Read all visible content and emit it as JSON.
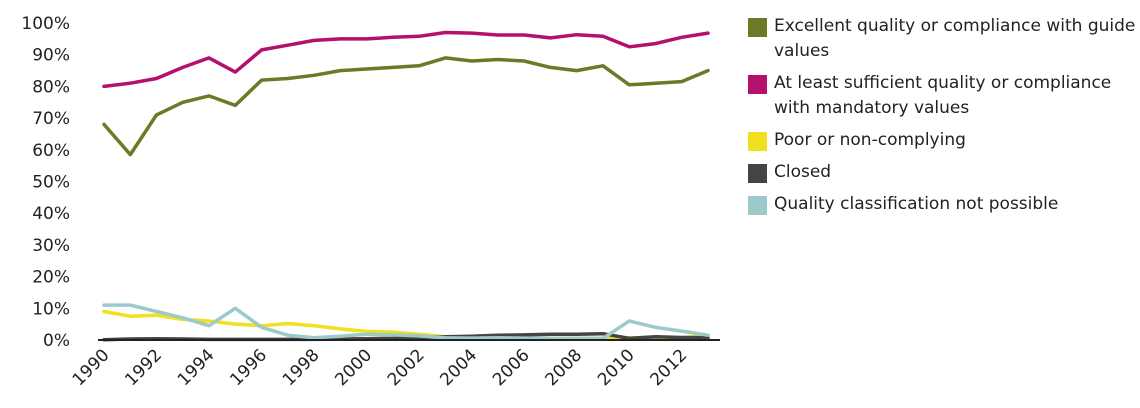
{
  "chart_data": {
    "type": "line",
    "title": "",
    "xlabel": "",
    "ylabel": "",
    "ylim": [
      0,
      100
    ],
    "yticks": [
      0,
      10,
      20,
      30,
      40,
      50,
      60,
      70,
      80,
      90,
      100
    ],
    "ytick_labels": [
      "0%",
      "10%",
      "20%",
      "30%",
      "40%",
      "50%",
      "60%",
      "70%",
      "80%",
      "90%",
      "100%"
    ],
    "x": [
      1990,
      1991,
      1992,
      1993,
      1994,
      1995,
      1996,
      1997,
      1998,
      1999,
      2000,
      2001,
      2002,
      2003,
      2004,
      2005,
      2006,
      2007,
      2008,
      2009,
      2010,
      2011,
      2012,
      2013
    ],
    "xticks": [
      1990,
      1992,
      1994,
      1996,
      1998,
      2000,
      2002,
      2004,
      2006,
      2008,
      2010,
      2012
    ],
    "xtick_labels": [
      "1990",
      "1992",
      "1994",
      "1996",
      "1998",
      "2000",
      "2002",
      "2004",
      "2006",
      "2008",
      "2010",
      "2012"
    ],
    "grid": false,
    "legend_position": "right",
    "series": [
      {
        "name": "Excellent quality or compliance with guide values",
        "color": "#6b7a27",
        "values": [
          68,
          58.5,
          71,
          75,
          77,
          74,
          82,
          82.5,
          83.5,
          85,
          85.5,
          86,
          86.5,
          89,
          88,
          88.5,
          88,
          86,
          85,
          86.5,
          80.5,
          81,
          81.5,
          85
        ]
      },
      {
        "name": "At least sufficient quality or compliance with mandatory values",
        "color": "#b5106c",
        "values": [
          80,
          81,
          82.5,
          86,
          89,
          84.5,
          91.5,
          93,
          94.5,
          95,
          95,
          95.5,
          95.8,
          97,
          96.8,
          96.2,
          96.2,
          95.3,
          96.3,
          95.8,
          92.5,
          93.5,
          95.5,
          96.8
        ]
      },
      {
        "name": "Poor or non-complying",
        "color": "#f0e020",
        "values": [
          9,
          7.5,
          7.8,
          6.5,
          6,
          5,
          4.5,
          5.2,
          4.5,
          3.5,
          2.7,
          2.5,
          1.8,
          1,
          0.7,
          0.6,
          0.5,
          0.5,
          0.6,
          0.6,
          0.7,
          0.8,
          0.7,
          1.5
        ]
      },
      {
        "name": "Closed",
        "color": "#444444",
        "values": [
          0.1,
          0.3,
          0.4,
          0.3,
          0.2,
          0.2,
          0.2,
          0.2,
          0.2,
          0.3,
          0.4,
          0.5,
          0.8,
          1,
          1.2,
          1.5,
          1.6,
          1.8,
          1.8,
          2,
          0.5,
          1,
          0.8,
          0.7
        ]
      },
      {
        "name": "Quality classification not possible",
        "color": "#9cc9c9",
        "values": [
          11,
          11,
          9,
          7,
          4.5,
          10,
          4,
          1.5,
          0.7,
          1.2,
          1.8,
          1.6,
          1.3,
          0.7,
          0.6,
          0.7,
          0.6,
          0.5,
          0.5,
          0.5,
          6,
          4,
          2.8,
          1.5
        ]
      }
    ]
  }
}
